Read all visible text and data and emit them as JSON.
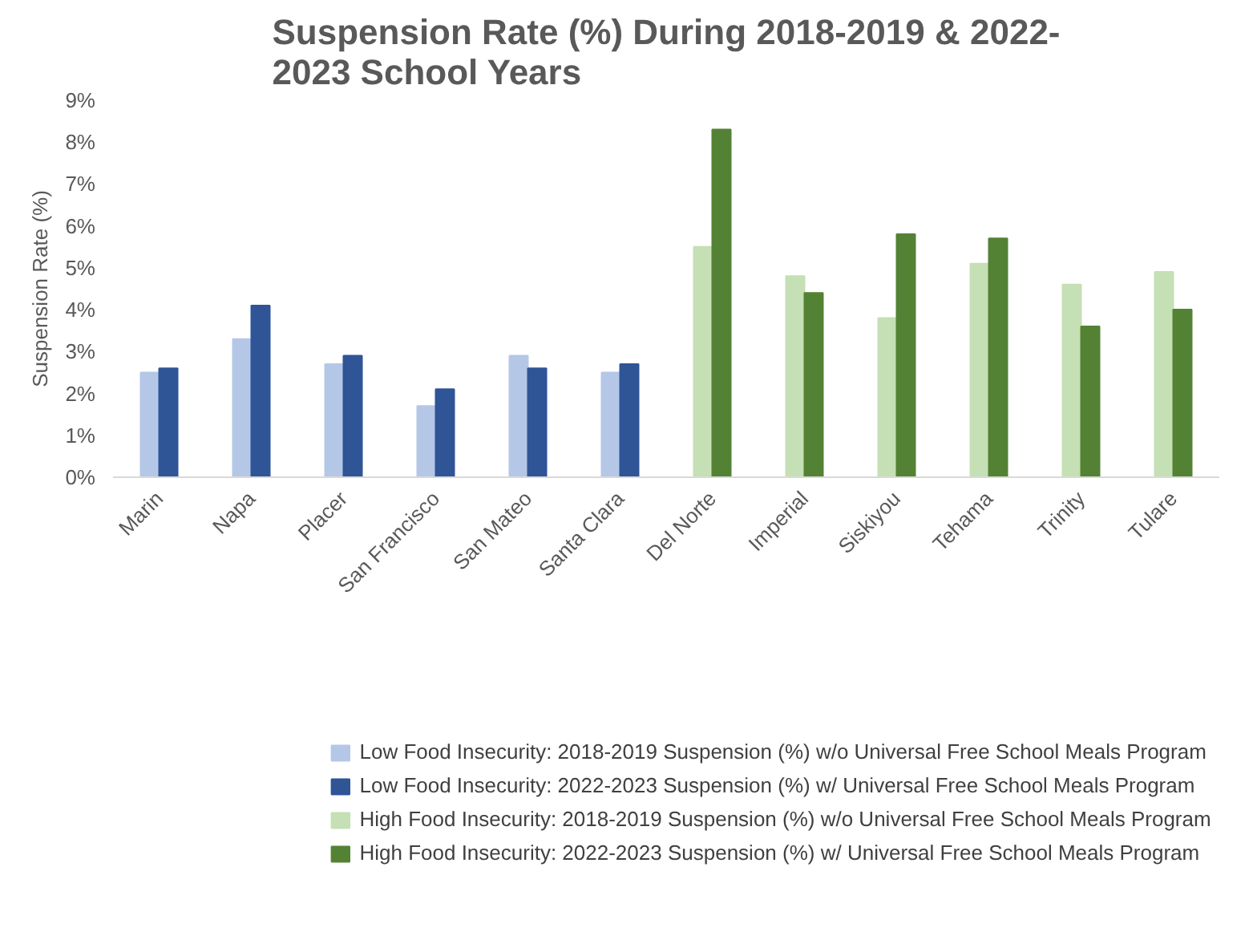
{
  "chart_data": {
    "type": "bar",
    "title": "Suspension Rate (%) During 2018-2019 & 2022-2023 School Years",
    "ylabel": "Suspension Rate (%)",
    "categories": [
      "Marin",
      "Napa",
      "Placer",
      "San Francisco",
      "San Mateo",
      "Santa Clara",
      "Del Norte",
      "Imperial",
      "Siskiyou",
      "Tehama",
      "Trinity",
      "Tulare"
    ],
    "series": [
      {
        "name": "Low Food Insecurity: 2018-2019 Suspension (%) w/o Universal Free School Meals Program",
        "color": "#b4c7e7",
        "values": [
          2.5,
          3.3,
          2.7,
          1.7,
          2.9,
          2.5,
          null,
          null,
          null,
          null,
          null,
          null
        ]
      },
      {
        "name": "Low Food Insecurity: 2022-2023 Suspension (%) w/ Universal Free School Meals Program",
        "color": "#2f5597",
        "values": [
          2.6,
          4.1,
          2.9,
          2.1,
          2.6,
          2.7,
          null,
          null,
          null,
          null,
          null,
          null
        ]
      },
      {
        "name": "High Food Insecurity: 2018-2019 Suspension (%) w/o Universal Free School Meals Program",
        "color": "#c5e0b4",
        "values": [
          null,
          null,
          null,
          null,
          null,
          null,
          5.5,
          4.8,
          3.8,
          5.1,
          4.6,
          4.9
        ]
      },
      {
        "name": "High Food Insecurity: 2022-2023 Suspension (%) w/ Universal Free School Meals Program",
        "color": "#548235",
        "values": [
          null,
          null,
          null,
          null,
          null,
          null,
          8.3,
          4.4,
          5.8,
          5.7,
          3.6,
          4.0
        ]
      }
    ],
    "ylim": [
      0,
      9
    ],
    "yticks": [
      {
        "value": 0,
        "label": "0%"
      },
      {
        "value": 1,
        "label": "1%"
      },
      {
        "value": 2,
        "label": "2%"
      },
      {
        "value": 3,
        "label": "3%"
      },
      {
        "value": 4,
        "label": "4%"
      },
      {
        "value": 5,
        "label": "5%"
      },
      {
        "value": 6,
        "label": "6%"
      },
      {
        "value": 7,
        "label": "7%"
      },
      {
        "value": 8,
        "label": "8%"
      },
      {
        "value": 9,
        "label": "9%"
      }
    ],
    "grid": false,
    "legend": "bottom"
  }
}
